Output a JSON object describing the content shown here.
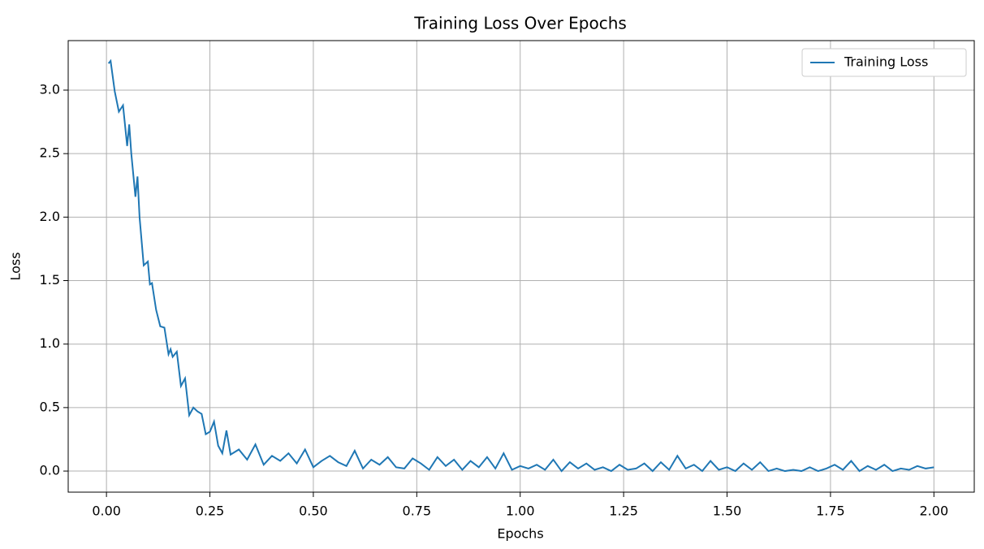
{
  "chart_data": {
    "type": "line",
    "title": "Training Loss Over Epochs",
    "xlabel": "Epochs",
    "ylabel": "Loss",
    "x": [
      0.005,
      0.01,
      0.02,
      0.03,
      0.04,
      0.05,
      0.055,
      0.06,
      0.07,
      0.075,
      0.08,
      0.09,
      0.1,
      0.105,
      0.11,
      0.12,
      0.13,
      0.14,
      0.15,
      0.155,
      0.16,
      0.17,
      0.18,
      0.19,
      0.2,
      0.21,
      0.22,
      0.23,
      0.24,
      0.25,
      0.26,
      0.27,
      0.28,
      0.29,
      0.3,
      0.32,
      0.34,
      0.36,
      0.38,
      0.4,
      0.42,
      0.44,
      0.46,
      0.48,
      0.5,
      0.52,
      0.54,
      0.56,
      0.58,
      0.6,
      0.62,
      0.64,
      0.66,
      0.68,
      0.7,
      0.72,
      0.74,
      0.76,
      0.78,
      0.8,
      0.82,
      0.84,
      0.86,
      0.88,
      0.9,
      0.92,
      0.94,
      0.96,
      0.98,
      1.0,
      1.02,
      1.04,
      1.06,
      1.08,
      1.1,
      1.12,
      1.14,
      1.16,
      1.18,
      1.2,
      1.22,
      1.24,
      1.26,
      1.28,
      1.3,
      1.32,
      1.34,
      1.36,
      1.38,
      1.4,
      1.42,
      1.44,
      1.46,
      1.48,
      1.5,
      1.52,
      1.54,
      1.56,
      1.58,
      1.6,
      1.62,
      1.64,
      1.66,
      1.68,
      1.7,
      1.72,
      1.74,
      1.76,
      1.78,
      1.8,
      1.82,
      1.84,
      1.86,
      1.88,
      1.9,
      1.92,
      1.94,
      1.96,
      1.98,
      2.0
    ],
    "series": [
      {
        "name": "Training Loss",
        "color": "#1f77b4",
        "values": [
          3.21,
          3.23,
          2.99,
          2.83,
          2.88,
          2.56,
          2.73,
          2.5,
          2.16,
          2.32,
          2.0,
          1.62,
          1.65,
          1.47,
          1.48,
          1.27,
          1.14,
          1.13,
          0.92,
          0.96,
          0.9,
          0.94,
          0.67,
          0.73,
          0.44,
          0.5,
          0.47,
          0.45,
          0.29,
          0.31,
          0.39,
          0.2,
          0.14,
          0.32,
          0.13,
          0.17,
          0.09,
          0.21,
          0.05,
          0.12,
          0.08,
          0.14,
          0.06,
          0.17,
          0.03,
          0.08,
          0.12,
          0.07,
          0.04,
          0.16,
          0.02,
          0.09,
          0.05,
          0.11,
          0.03,
          0.02,
          0.1,
          0.06,
          0.01,
          0.11,
          0.04,
          0.09,
          0.01,
          0.08,
          0.03,
          0.11,
          0.02,
          0.14,
          0.01,
          0.04,
          0.02,
          0.05,
          0.01,
          0.09,
          0.0,
          0.07,
          0.02,
          0.06,
          0.01,
          0.03,
          0.0,
          0.05,
          0.01,
          0.02,
          0.06,
          0.0,
          0.07,
          0.01,
          0.12,
          0.02,
          0.05,
          0.0,
          0.08,
          0.01,
          0.03,
          0.0,
          0.06,
          0.01,
          0.07,
          0.0,
          0.02,
          0.0,
          0.01,
          0.0,
          0.03,
          0.0,
          0.02,
          0.05,
          0.01,
          0.08,
          0.0,
          0.04,
          0.01,
          0.05,
          0.0,
          0.02,
          0.01,
          0.04,
          0.02,
          0.03
        ]
      }
    ],
    "xlim": [
      -0.0925,
      2.0975
    ],
    "ylim": [
      -0.166,
      3.39
    ],
    "xticks": [
      {
        "value": 0,
        "label": "0.00"
      },
      0.25,
      {
        "value": 0.5,
        "label": "0.50"
      },
      0.75,
      {
        "value": 1,
        "label": "1.00"
      },
      1.25,
      {
        "value": 1.5,
        "label": "1.50"
      },
      1.75,
      {
        "value": 2,
        "label": "2.00"
      }
    ],
    "yticks": [
      {
        "value": 0,
        "label": "0.0"
      },
      0.5,
      {
        "value": 1,
        "label": "1.0"
      },
      1.5,
      {
        "value": 2,
        "label": "2.0"
      },
      2.5,
      {
        "value": 3,
        "label": "3.0"
      }
    ],
    "grid": true,
    "legend": "upper right"
  }
}
